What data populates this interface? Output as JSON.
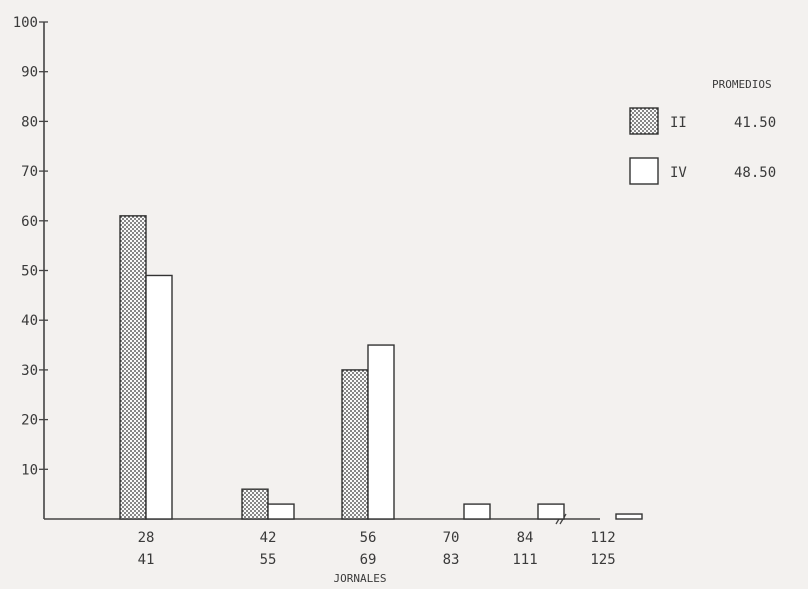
{
  "chart_data": {
    "type": "bar",
    "xlabel": "JORNALES",
    "ylabel": "",
    "ylim": [
      0,
      100
    ],
    "yticks": [
      10,
      20,
      30,
      40,
      50,
      60,
      70,
      80,
      90,
      100
    ],
    "categories": [
      {
        "top": "28",
        "bottom": "41"
      },
      {
        "top": "42",
        "bottom": "55"
      },
      {
        "top": "56",
        "bottom": "69"
      },
      {
        "top": "70",
        "bottom": "83"
      },
      {
        "top": "84",
        "bottom": "111"
      },
      {
        "top": "112",
        "bottom": "125"
      }
    ],
    "series": [
      {
        "name": "II",
        "values": [
          61,
          6,
          30,
          0,
          0,
          0
        ],
        "color": "#ffffff",
        "pattern": "dotted"
      },
      {
        "name": "IV",
        "values": [
          49,
          3,
          35,
          3,
          3,
          1
        ],
        "color": "#ffffff",
        "pattern": "none"
      }
    ],
    "legend": {
      "title": "PROMEDIOS",
      "placement": "top-right",
      "entries": [
        {
          "label": "II",
          "value": "41.50"
        },
        {
          "label": "IV",
          "value": "48.50"
        }
      ]
    },
    "axis_break_between": [
      "84",
      "112"
    ],
    "grid": false
  }
}
